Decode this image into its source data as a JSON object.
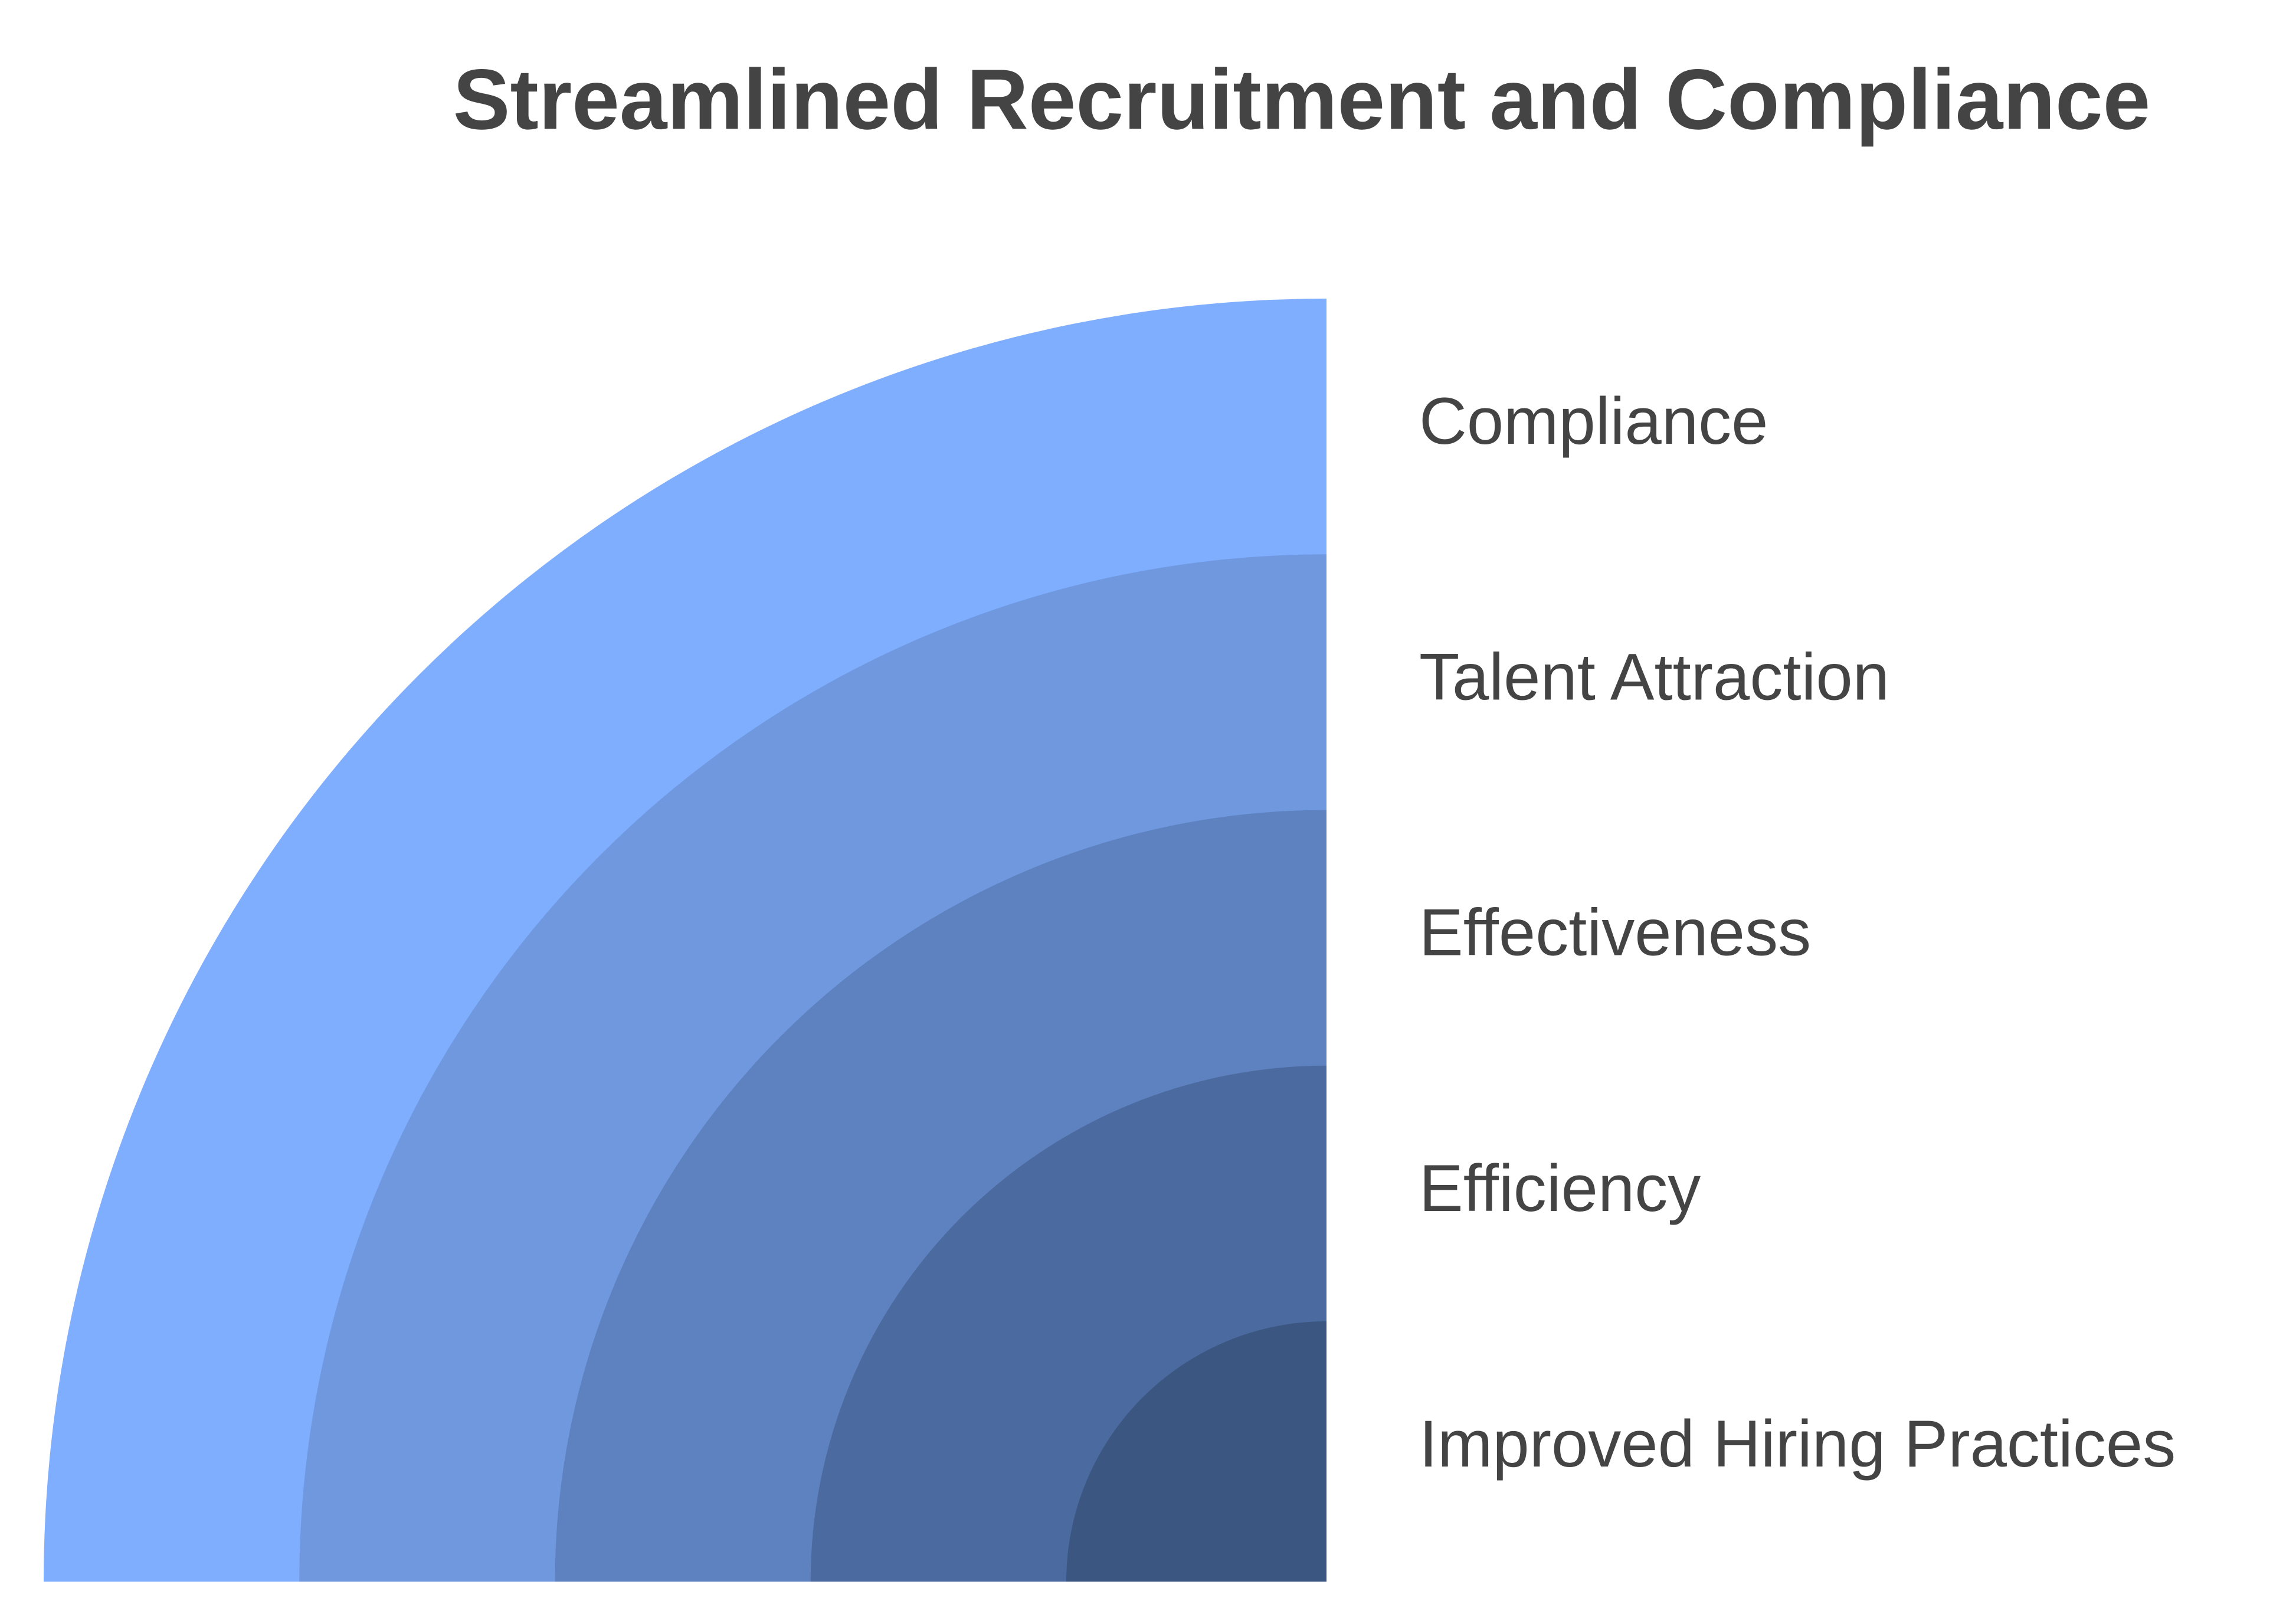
{
  "title": "Streamlined Recruitment and Compliance",
  "layers": [
    {
      "label": "Compliance",
      "color": "#7FAEFF"
    },
    {
      "label": "Talent Attraction",
      "color": "#6F98DF"
    },
    {
      "label": "Effectiveness",
      "color": "#5E82BF"
    },
    {
      "label": "Efficiency",
      "color": "#4B6A9F"
    },
    {
      "label": "Improved Hiring Practices",
      "color": "#3B5680"
    }
  ]
}
